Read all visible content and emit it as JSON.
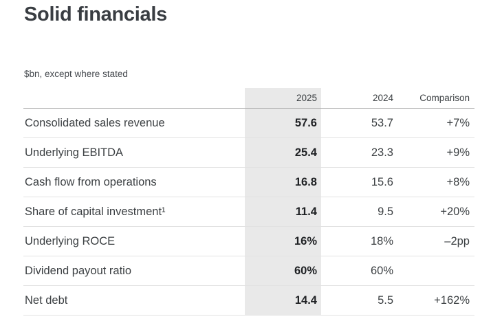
{
  "page": {
    "title": "Solid financials",
    "subtitle": "$bn, except where stated"
  },
  "chart_data": {
    "type": "table",
    "title": "Solid financials",
    "subtitle": "$bn, except where stated",
    "columns": [
      "",
      "2025",
      "2024",
      "Comparison"
    ],
    "highlight_column": "2025",
    "rows": [
      {
        "label": "Consolidated sales revenue",
        "y2025": "57.6",
        "y2024": "53.7",
        "comparison": "+7%"
      },
      {
        "label": "Underlying EBITDA",
        "y2025": "25.4",
        "y2024": "23.3",
        "comparison": "+9%"
      },
      {
        "label": "Cash flow from operations",
        "y2025": "16.8",
        "y2024": "15.6",
        "comparison": "+8%"
      },
      {
        "label": "Share of capital investment¹",
        "y2025": "11.4",
        "y2024": "9.5",
        "comparison": "+20%"
      },
      {
        "label": "Underlying ROCE",
        "y2025": "16%",
        "y2024": "18%",
        "comparison": "–2pp"
      },
      {
        "label": "Dividend payout ratio",
        "y2025": "60%",
        "y2024": "60%",
        "comparison": ""
      },
      {
        "label": "Net debt",
        "y2025": "14.4",
        "y2024": "5.5",
        "comparison": "+162%"
      }
    ]
  },
  "colors": {
    "highlight_column_bg": "#e9e9e9",
    "text": "#3c4043",
    "bold_value_text": "#1f2124",
    "row_border": "#e2e2e2",
    "header_border": "#ababab",
    "background": "#ffffff"
  }
}
